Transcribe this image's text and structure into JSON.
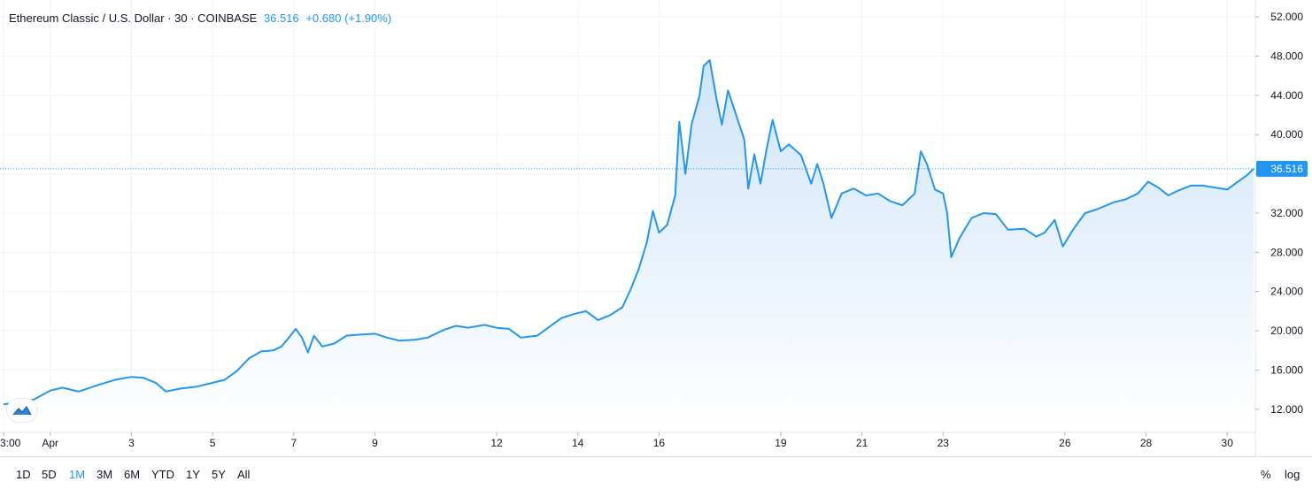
{
  "header": {
    "title": "Ethereum Classic / U.S. Dollar · 30 · COINBASE",
    "last_price": "36.516",
    "change": "+0.680 (+1.90%)"
  },
  "colors": {
    "line": "#2196f3",
    "area_top": "#cfe4f9",
    "area_bottom": "#ffffff",
    "price_label_bg": "#2196f3",
    "grid": "#f0f3fa",
    "axis_text": "#131722"
  },
  "time_ranges": {
    "items": [
      "1D",
      "5D",
      "1M",
      "3M",
      "6M",
      "YTD",
      "1Y",
      "5Y",
      "All"
    ],
    "active": "1M"
  },
  "scale_options": {
    "percent": "%",
    "log": "log"
  },
  "chart_data": {
    "type": "area",
    "y_range": [
      10000,
      53000
    ],
    "y_ticks": [
      12000,
      16000,
      20000,
      24000,
      28000,
      32000,
      36000,
      40000,
      44000,
      48000,
      52000
    ],
    "y_tick_labels": [
      "12.000",
      "16.000",
      "20.000",
      "24.000",
      "28.000",
      "32.000",
      "",
      "40.000",
      "44.000",
      "48.000",
      "52.000"
    ],
    "x_range": [
      -0.15,
      30.65
    ],
    "x_ticks": [
      {
        "x": -0.15,
        "label": "3:00"
      },
      {
        "x": 1,
        "label": "Apr"
      },
      {
        "x": 3,
        "label": "3"
      },
      {
        "x": 5,
        "label": "5"
      },
      {
        "x": 7,
        "label": "7"
      },
      {
        "x": 9,
        "label": "9"
      },
      {
        "x": 12,
        "label": "12"
      },
      {
        "x": 14,
        "label": "14"
      },
      {
        "x": 16,
        "label": "16"
      },
      {
        "x": 19,
        "label": "19"
      },
      {
        "x": 21,
        "label": "21"
      },
      {
        "x": 23,
        "label": "23"
      },
      {
        "x": 26,
        "label": "26"
      },
      {
        "x": 28,
        "label": "28"
      },
      {
        "x": 30,
        "label": "30"
      }
    ],
    "last_value": 36516,
    "last_value_label": "36.516",
    "grid": true,
    "series": [
      {
        "points": [
          [
            -0.15,
            12500
          ],
          [
            0.2,
            12700
          ],
          [
            0.6,
            13000
          ],
          [
            1.0,
            13900
          ],
          [
            1.3,
            14200
          ],
          [
            1.7,
            13800
          ],
          [
            2.2,
            14500
          ],
          [
            2.6,
            15000
          ],
          [
            3.0,
            15300
          ],
          [
            3.3,
            15200
          ],
          [
            3.6,
            14700
          ],
          [
            3.85,
            13800
          ],
          [
            4.2,
            14100
          ],
          [
            4.6,
            14300
          ],
          [
            5.0,
            14700
          ],
          [
            5.3,
            15000
          ],
          [
            5.6,
            15900
          ],
          [
            5.9,
            17200
          ],
          [
            6.2,
            17900
          ],
          [
            6.5,
            18000
          ],
          [
            6.7,
            18400
          ],
          [
            6.9,
            19400
          ],
          [
            7.05,
            20200
          ],
          [
            7.2,
            19300
          ],
          [
            7.35,
            17800
          ],
          [
            7.5,
            19500
          ],
          [
            7.7,
            18400
          ],
          [
            8.0,
            18700
          ],
          [
            8.3,
            19500
          ],
          [
            8.6,
            19600
          ],
          [
            9.0,
            19700
          ],
          [
            9.3,
            19300
          ],
          [
            9.6,
            19000
          ],
          [
            10.0,
            19100
          ],
          [
            10.3,
            19300
          ],
          [
            10.7,
            20100
          ],
          [
            11.0,
            20500
          ],
          [
            11.3,
            20300
          ],
          [
            11.7,
            20600
          ],
          [
            12.0,
            20300
          ],
          [
            12.3,
            20200
          ],
          [
            12.6,
            19300
          ],
          [
            13.0,
            19500
          ],
          [
            13.3,
            20400
          ],
          [
            13.6,
            21300
          ],
          [
            13.9,
            21700
          ],
          [
            14.2,
            22000
          ],
          [
            14.5,
            21100
          ],
          [
            14.8,
            21600
          ],
          [
            15.1,
            22400
          ],
          [
            15.3,
            24200
          ],
          [
            15.5,
            26300
          ],
          [
            15.7,
            29000
          ],
          [
            15.85,
            32200
          ],
          [
            16.0,
            30000
          ],
          [
            16.2,
            30800
          ],
          [
            16.4,
            33800
          ],
          [
            16.5,
            41300
          ],
          [
            16.65,
            36000
          ],
          [
            16.8,
            41000
          ],
          [
            17.0,
            44000
          ],
          [
            17.1,
            47000
          ],
          [
            17.25,
            47600
          ],
          [
            17.4,
            44000
          ],
          [
            17.55,
            41000
          ],
          [
            17.7,
            44500
          ],
          [
            17.9,
            42000
          ],
          [
            18.1,
            39500
          ],
          [
            18.2,
            34500
          ],
          [
            18.35,
            38000
          ],
          [
            18.5,
            35000
          ],
          [
            18.65,
            38500
          ],
          [
            18.8,
            41500
          ],
          [
            19.0,
            38300
          ],
          [
            19.2,
            39000
          ],
          [
            19.5,
            37900
          ],
          [
            19.75,
            35000
          ],
          [
            19.9,
            37000
          ],
          [
            20.05,
            35000
          ],
          [
            20.25,
            31500
          ],
          [
            20.5,
            34000
          ],
          [
            20.8,
            34500
          ],
          [
            21.1,
            33800
          ],
          [
            21.4,
            34000
          ],
          [
            21.7,
            33200
          ],
          [
            22.0,
            32800
          ],
          [
            22.3,
            34000
          ],
          [
            22.45,
            38300
          ],
          [
            22.6,
            37000
          ],
          [
            22.8,
            34400
          ],
          [
            23.0,
            34000
          ],
          [
            23.1,
            32000
          ],
          [
            23.2,
            27500
          ],
          [
            23.4,
            29400
          ],
          [
            23.7,
            31500
          ],
          [
            24.0,
            32000
          ],
          [
            24.3,
            31900
          ],
          [
            24.6,
            30300
          ],
          [
            25.0,
            30400
          ],
          [
            25.3,
            29600
          ],
          [
            25.5,
            30000
          ],
          [
            25.75,
            31300
          ],
          [
            25.95,
            28600
          ],
          [
            26.2,
            30300
          ],
          [
            26.5,
            32000
          ],
          [
            26.8,
            32400
          ],
          [
            27.2,
            33100
          ],
          [
            27.5,
            33400
          ],
          [
            27.8,
            34000
          ],
          [
            28.05,
            35200
          ],
          [
            28.3,
            34600
          ],
          [
            28.55,
            33800
          ],
          [
            28.8,
            34300
          ],
          [
            29.1,
            34800
          ],
          [
            29.4,
            34800
          ],
          [
            29.7,
            34600
          ],
          [
            30.0,
            34400
          ],
          [
            30.3,
            35300
          ],
          [
            30.5,
            35900
          ],
          [
            30.65,
            36516
          ]
        ]
      }
    ]
  }
}
